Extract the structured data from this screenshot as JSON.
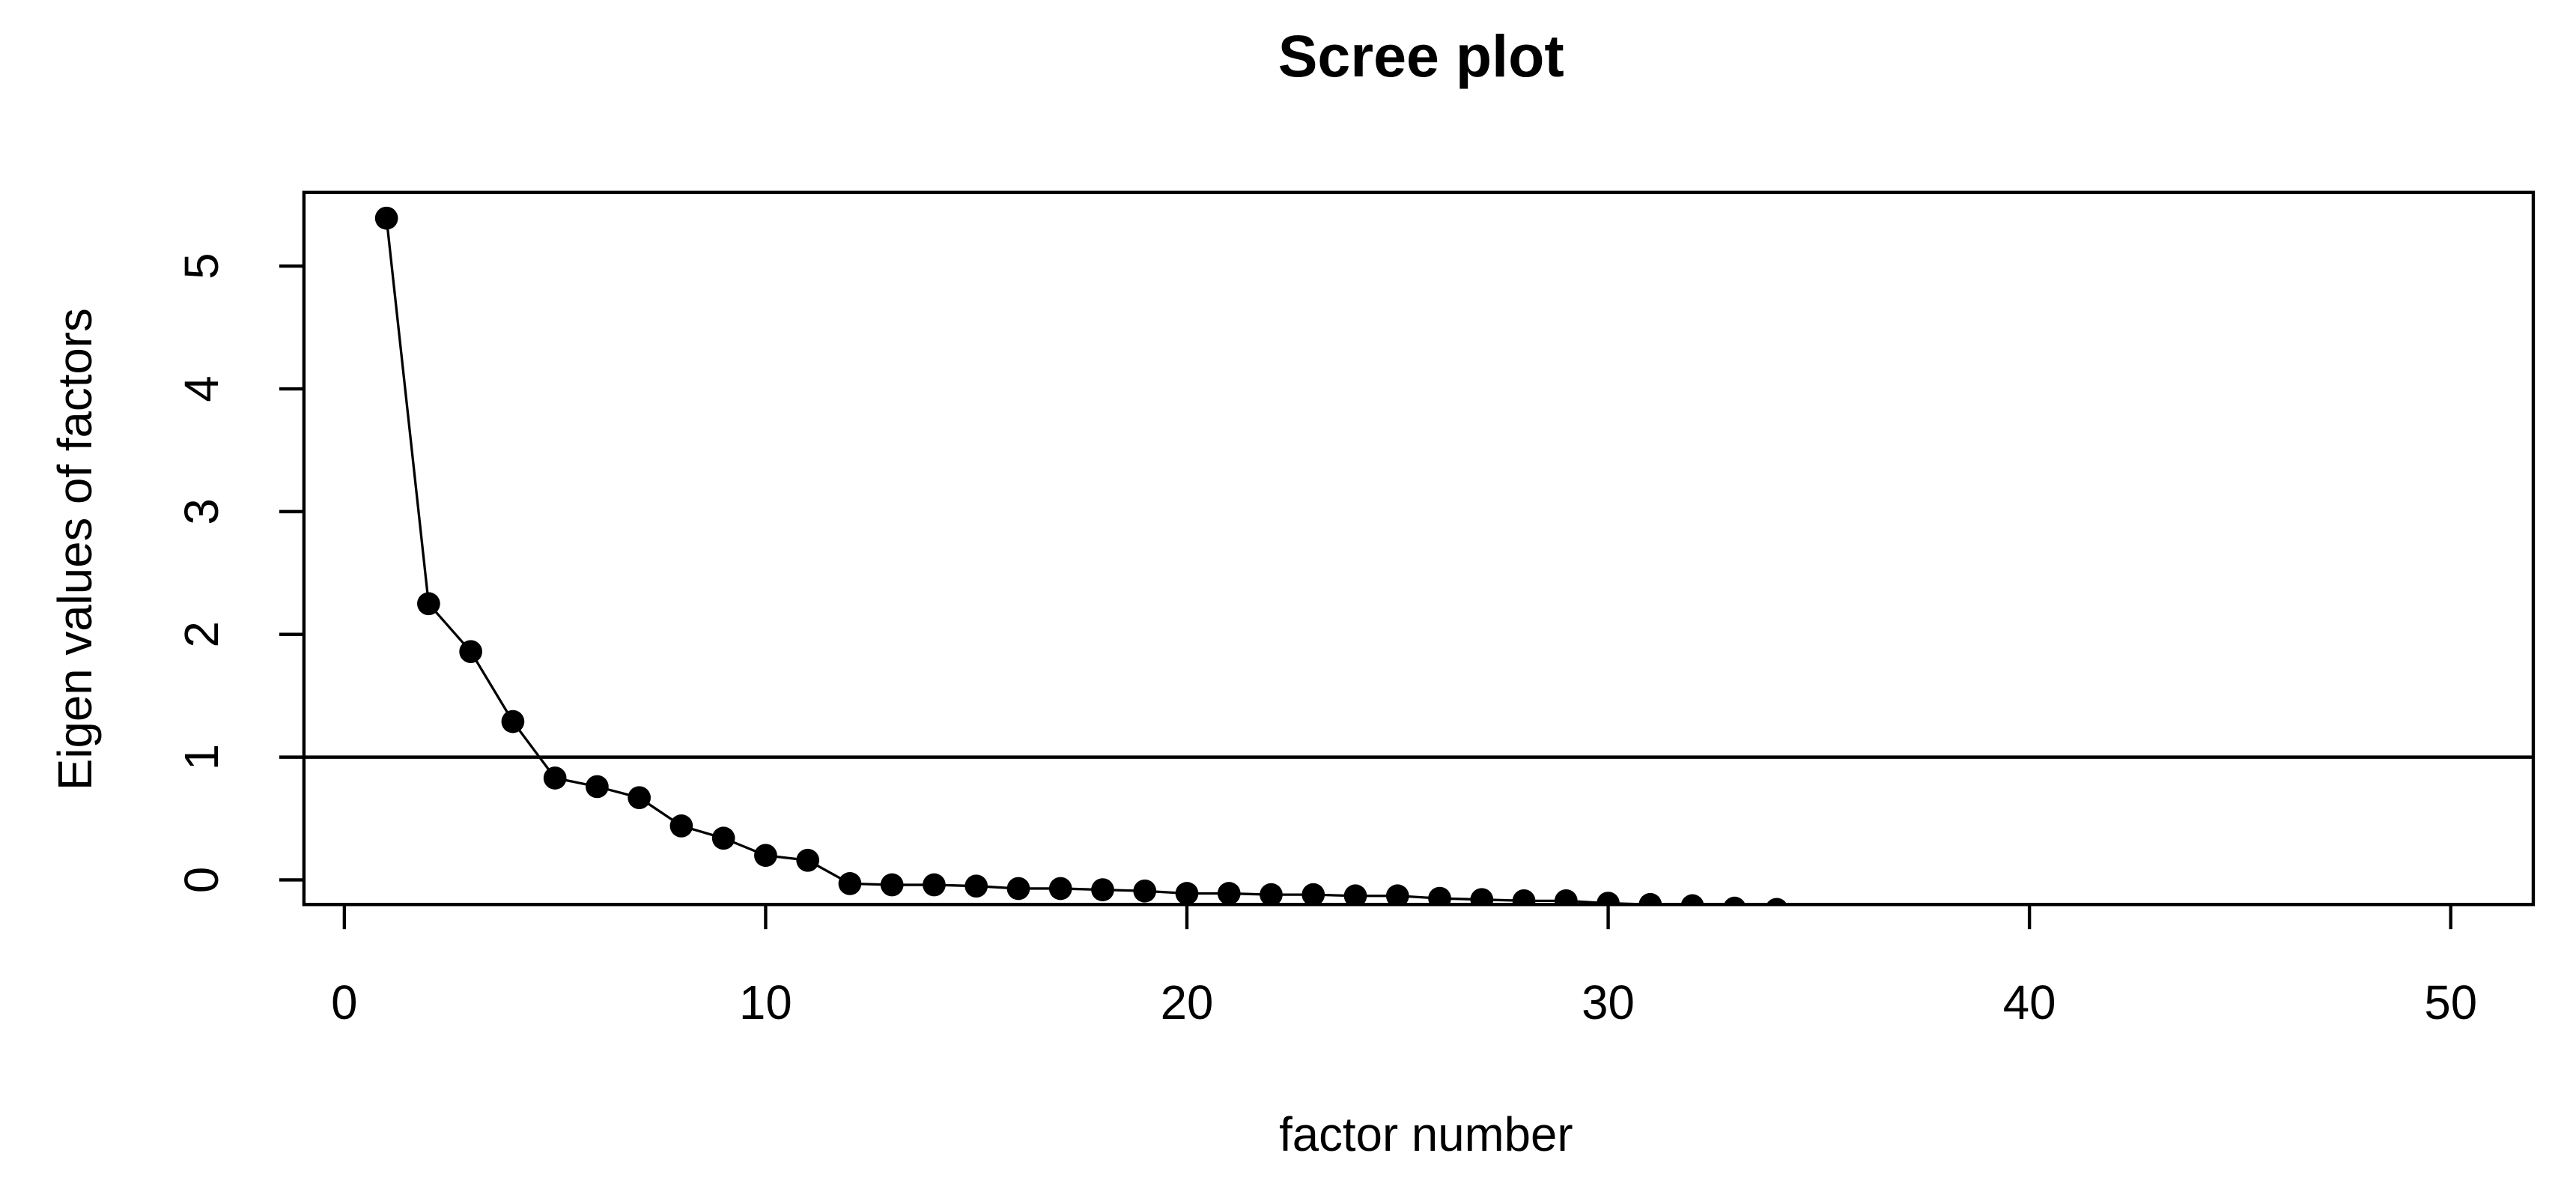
{
  "chart_data": {
    "type": "line",
    "title": "Scree plot",
    "x_label": "factor number",
    "y_label": "Eigen values of factors",
    "x": [
      1,
      2,
      3,
      4,
      5,
      6,
      7,
      8,
      9,
      10,
      11,
      12,
      13,
      14,
      15,
      16,
      17,
      18,
      19,
      20,
      21,
      22,
      23,
      24,
      25,
      26,
      27,
      28,
      29,
      30,
      31,
      32,
      33,
      34
    ],
    "series": [
      {
        "name": "eigenvalues",
        "color": "#000000",
        "values": [
          5.39,
          2.25,
          1.86,
          1.29,
          0.83,
          0.76,
          0.67,
          0.44,
          0.34,
          0.2,
          0.16,
          -0.03,
          -0.04,
          -0.04,
          -0.05,
          -0.07,
          -0.07,
          -0.08,
          -0.09,
          -0.11,
          -0.11,
          -0.12,
          -0.12,
          -0.13,
          -0.13,
          -0.15,
          -0.16,
          -0.17,
          -0.17,
          -0.19,
          -0.2,
          -0.21,
          -0.23,
          -0.24
        ]
      }
    ],
    "hline": 1,
    "xlim": [
      -0.96,
      51.96
    ],
    "ylim": [
      -0.2,
      5.6
    ],
    "xticks": [
      0,
      10,
      20,
      30,
      40,
      50
    ],
    "yticks": [
      0,
      1,
      2,
      3,
      4,
      5
    ]
  }
}
